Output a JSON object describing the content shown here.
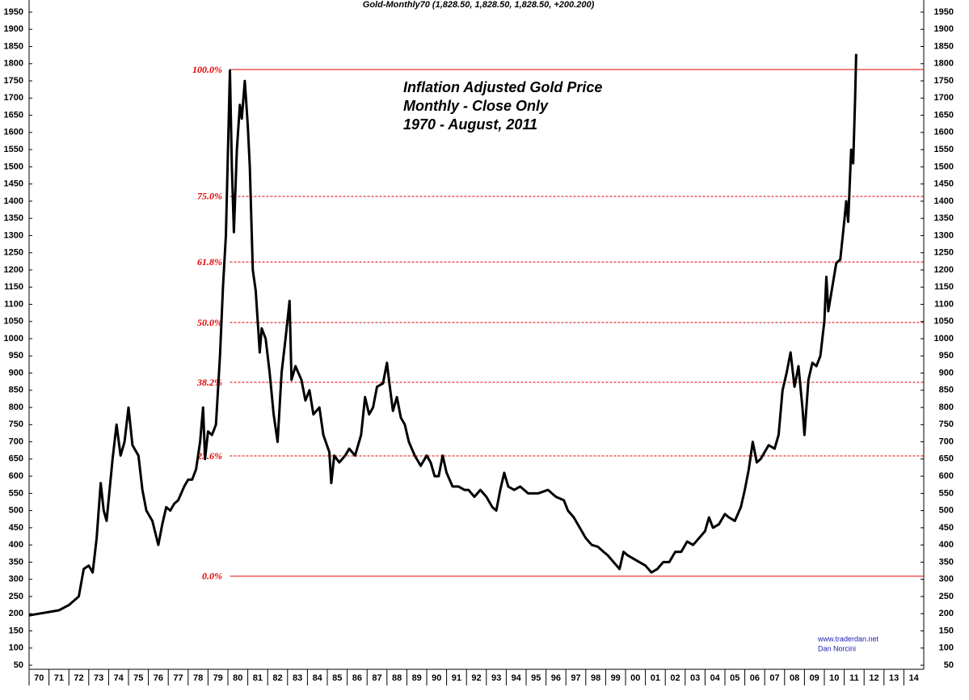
{
  "chart_data": {
    "type": "line",
    "title": "Gold-Monthly70 (1,828.50, 1,828.50, 1,828.50, +200.200)",
    "annotation": [
      "Inflation Adjusted Gold Price",
      "Monthly - Close Only",
      "1970 - August, 2011"
    ],
    "credits": [
      "www.traderdan.net",
      "Dan Norcini"
    ],
    "ylim": [
      50,
      1950
    ],
    "yticks": [
      50,
      100,
      150,
      200,
      250,
      300,
      350,
      400,
      450,
      500,
      550,
      600,
      650,
      700,
      750,
      800,
      850,
      900,
      950,
      1000,
      1050,
      1100,
      1150,
      1200,
      1250,
      1300,
      1350,
      1400,
      1450,
      1500,
      1550,
      1600,
      1650,
      1700,
      1750,
      1800,
      1850,
      1900,
      1950
    ],
    "xlim": [
      1970,
      2015
    ],
    "xticks": [
      {
        "value": 1970,
        "label": "70"
      },
      {
        "value": 1971,
        "label": "71"
      },
      {
        "value": 1972,
        "label": "72"
      },
      {
        "value": 1973,
        "label": "73"
      },
      {
        "value": 1974,
        "label": "74"
      },
      {
        "value": 1975,
        "label": "75"
      },
      {
        "value": 1976,
        "label": "76"
      },
      {
        "value": 1977,
        "label": "77"
      },
      {
        "value": 1978,
        "label": "78"
      },
      {
        "value": 1979,
        "label": "79"
      },
      {
        "value": 1980,
        "label": "80"
      },
      {
        "value": 1981,
        "label": "81"
      },
      {
        "value": 1982,
        "label": "82"
      },
      {
        "value": 1983,
        "label": "83"
      },
      {
        "value": 1984,
        "label": "84"
      },
      {
        "value": 1985,
        "label": "85"
      },
      {
        "value": 1986,
        "label": "86"
      },
      {
        "value": 1987,
        "label": "87"
      },
      {
        "value": 1988,
        "label": "88"
      },
      {
        "value": 1989,
        "label": "89"
      },
      {
        "value": 1990,
        "label": "90"
      },
      {
        "value": 1991,
        "label": "91"
      },
      {
        "value": 1992,
        "label": "92"
      },
      {
        "value": 1993,
        "label": "93"
      },
      {
        "value": 1994,
        "label": "94"
      },
      {
        "value": 1995,
        "label": "95"
      },
      {
        "value": 1996,
        "label": "96"
      },
      {
        "value": 1997,
        "label": "97"
      },
      {
        "value": 1998,
        "label": "98"
      },
      {
        "value": 1999,
        "label": "99"
      },
      {
        "value": 2000,
        "label": "00"
      },
      {
        "value": 2001,
        "label": "01"
      },
      {
        "value": 2002,
        "label": "02"
      },
      {
        "value": 2003,
        "label": "03"
      },
      {
        "value": 2004,
        "label": "04"
      },
      {
        "value": 2005,
        "label": "05"
      },
      {
        "value": 2006,
        "label": "06"
      },
      {
        "value": 2007,
        "label": "07"
      },
      {
        "value": 2008,
        "label": "08"
      },
      {
        "value": 2009,
        "label": "09"
      },
      {
        "value": 2010,
        "label": "10"
      },
      {
        "value": 2011,
        "label": "11"
      },
      {
        "value": 2012,
        "label": "12"
      },
      {
        "value": 2013,
        "label": "13"
      },
      {
        "value": 2014,
        "label": "14"
      }
    ],
    "levels_start": 1980.1,
    "levels": [
      {
        "label": "100.0%",
        "value": 1783,
        "style": "solid"
      },
      {
        "label": "75.0%",
        "value": 1414,
        "style": "dashed"
      },
      {
        "label": "61.8%",
        "value": 1223,
        "style": "dashed"
      },
      {
        "label": "50.0%",
        "value": 1047,
        "style": "dashed"
      },
      {
        "label": "38.2%",
        "value": 873,
        "style": "dashed"
      },
      {
        "label": "23.6%",
        "value": 659,
        "style": "dashed"
      },
      {
        "label": "0.0%",
        "value": 309,
        "style": "solid"
      }
    ],
    "level_color": "#e00000",
    "series": [
      {
        "color": "#000000",
        "x": [
          1970.0,
          1970.5,
          1971.0,
          1971.5,
          1972.0,
          1972.5,
          1972.75,
          1973.0,
          1973.2,
          1973.4,
          1973.6,
          1973.75,
          1973.9,
          1974.2,
          1974.4,
          1974.6,
          1974.8,
          1975.0,
          1975.2,
          1975.5,
          1975.7,
          1975.9,
          1976.2,
          1976.5,
          1976.7,
          1976.9,
          1977.1,
          1977.3,
          1977.5,
          1977.8,
          1978.0,
          1978.2,
          1978.4,
          1978.6,
          1978.75,
          1978.85,
          1979.0,
          1979.2,
          1979.4,
          1979.6,
          1979.75,
          1979.9,
          1980.1,
          1980.2,
          1980.3,
          1980.45,
          1980.6,
          1980.7,
          1980.85,
          1981.0,
          1981.1,
          1981.25,
          1981.4,
          1981.6,
          1981.7,
          1981.9,
          1982.1,
          1982.3,
          1982.5,
          1982.7,
          1982.9,
          1983.1,
          1983.2,
          1983.4,
          1983.7,
          1983.9,
          1984.1,
          1984.3,
          1984.6,
          1984.8,
          1985.1,
          1985.2,
          1985.35,
          1985.6,
          1985.9,
          1986.1,
          1986.4,
          1986.7,
          1986.9,
          1987.1,
          1987.3,
          1987.5,
          1987.8,
          1988.0,
          1988.1,
          1988.3,
          1988.5,
          1988.7,
          1988.9,
          1989.1,
          1989.4,
          1989.7,
          1990.0,
          1990.2,
          1990.4,
          1990.6,
          1990.8,
          1991.0,
          1991.3,
          1991.6,
          1991.9,
          1992.1,
          1992.4,
          1992.7,
          1993.0,
          1993.3,
          1993.5,
          1993.7,
          1993.9,
          1994.1,
          1994.4,
          1994.7,
          1995.1,
          1995.6,
          1996.1,
          1996.5,
          1996.9,
          1997.1,
          1997.4,
          1997.7,
          1998.0,
          1998.3,
          1998.6,
          1998.9,
          1999.1,
          1999.4,
          1999.7,
          1999.9,
          2000.1,
          2000.4,
          2000.7,
          2001.0,
          2001.3,
          2001.6,
          2001.9,
          2002.2,
          2002.5,
          2002.8,
          2003.1,
          2003.4,
          2003.7,
          2004.0,
          2004.2,
          2004.4,
          2004.7,
          2005.0,
          2005.2,
          2005.5,
          2005.8,
          2006.0,
          2006.2,
          2006.4,
          2006.6,
          2006.8,
          2007.0,
          2007.2,
          2007.5,
          2007.7,
          2007.9,
          2008.1,
          2008.3,
          2008.5,
          2008.7,
          2008.9,
          2009.0,
          2009.2,
          2009.4,
          2009.6,
          2009.8,
          2010.0,
          2010.1,
          2010.2,
          2010.4,
          2010.6,
          2010.8,
          2011.0,
          2011.1,
          2011.2,
          2011.35,
          2011.45,
          2011.55,
          2011.6
        ],
        "values": [
          195,
          200,
          205,
          210,
          225,
          250,
          330,
          340,
          320,
          420,
          580,
          500,
          470,
          650,
          750,
          660,
          700,
          800,
          690,
          660,
          560,
          500,
          470,
          400,
          460,
          510,
          500,
          520,
          530,
          570,
          590,
          590,
          620,
          700,
          800,
          650,
          730,
          720,
          750,
          950,
          1150,
          1300,
          1780,
          1500,
          1310,
          1550,
          1680,
          1640,
          1750,
          1620,
          1500,
          1200,
          1140,
          960,
          1030,
          1000,
          900,
          780,
          700,
          900,
          1000,
          1110,
          880,
          920,
          880,
          820,
          850,
          780,
          800,
          720,
          670,
          580,
          660,
          640,
          660,
          680,
          660,
          720,
          830,
          780,
          800,
          860,
          870,
          930,
          880,
          790,
          830,
          770,
          750,
          700,
          660,
          630,
          660,
          640,
          600,
          600,
          660,
          610,
          570,
          570,
          560,
          560,
          540,
          560,
          540,
          510,
          500,
          560,
          610,
          570,
          560,
          570,
          550,
          550,
          560,
          540,
          530,
          500,
          480,
          450,
          420,
          400,
          395,
          380,
          370,
          350,
          330,
          380,
          370,
          360,
          350,
          340,
          320,
          330,
          350,
          350,
          380,
          380,
          410,
          400,
          420,
          440,
          480,
          450,
          460,
          490,
          480,
          470,
          510,
          560,
          620,
          700,
          640,
          650,
          670,
          690,
          680,
          720,
          850,
          900,
          960,
          860,
          920,
          800,
          720,
          880,
          930,
          920,
          950,
          1050,
          1180,
          1080,
          1150,
          1220,
          1230,
          1340,
          1400,
          1340,
          1550,
          1510,
          1700,
          1828.5
        ]
      }
    ]
  }
}
